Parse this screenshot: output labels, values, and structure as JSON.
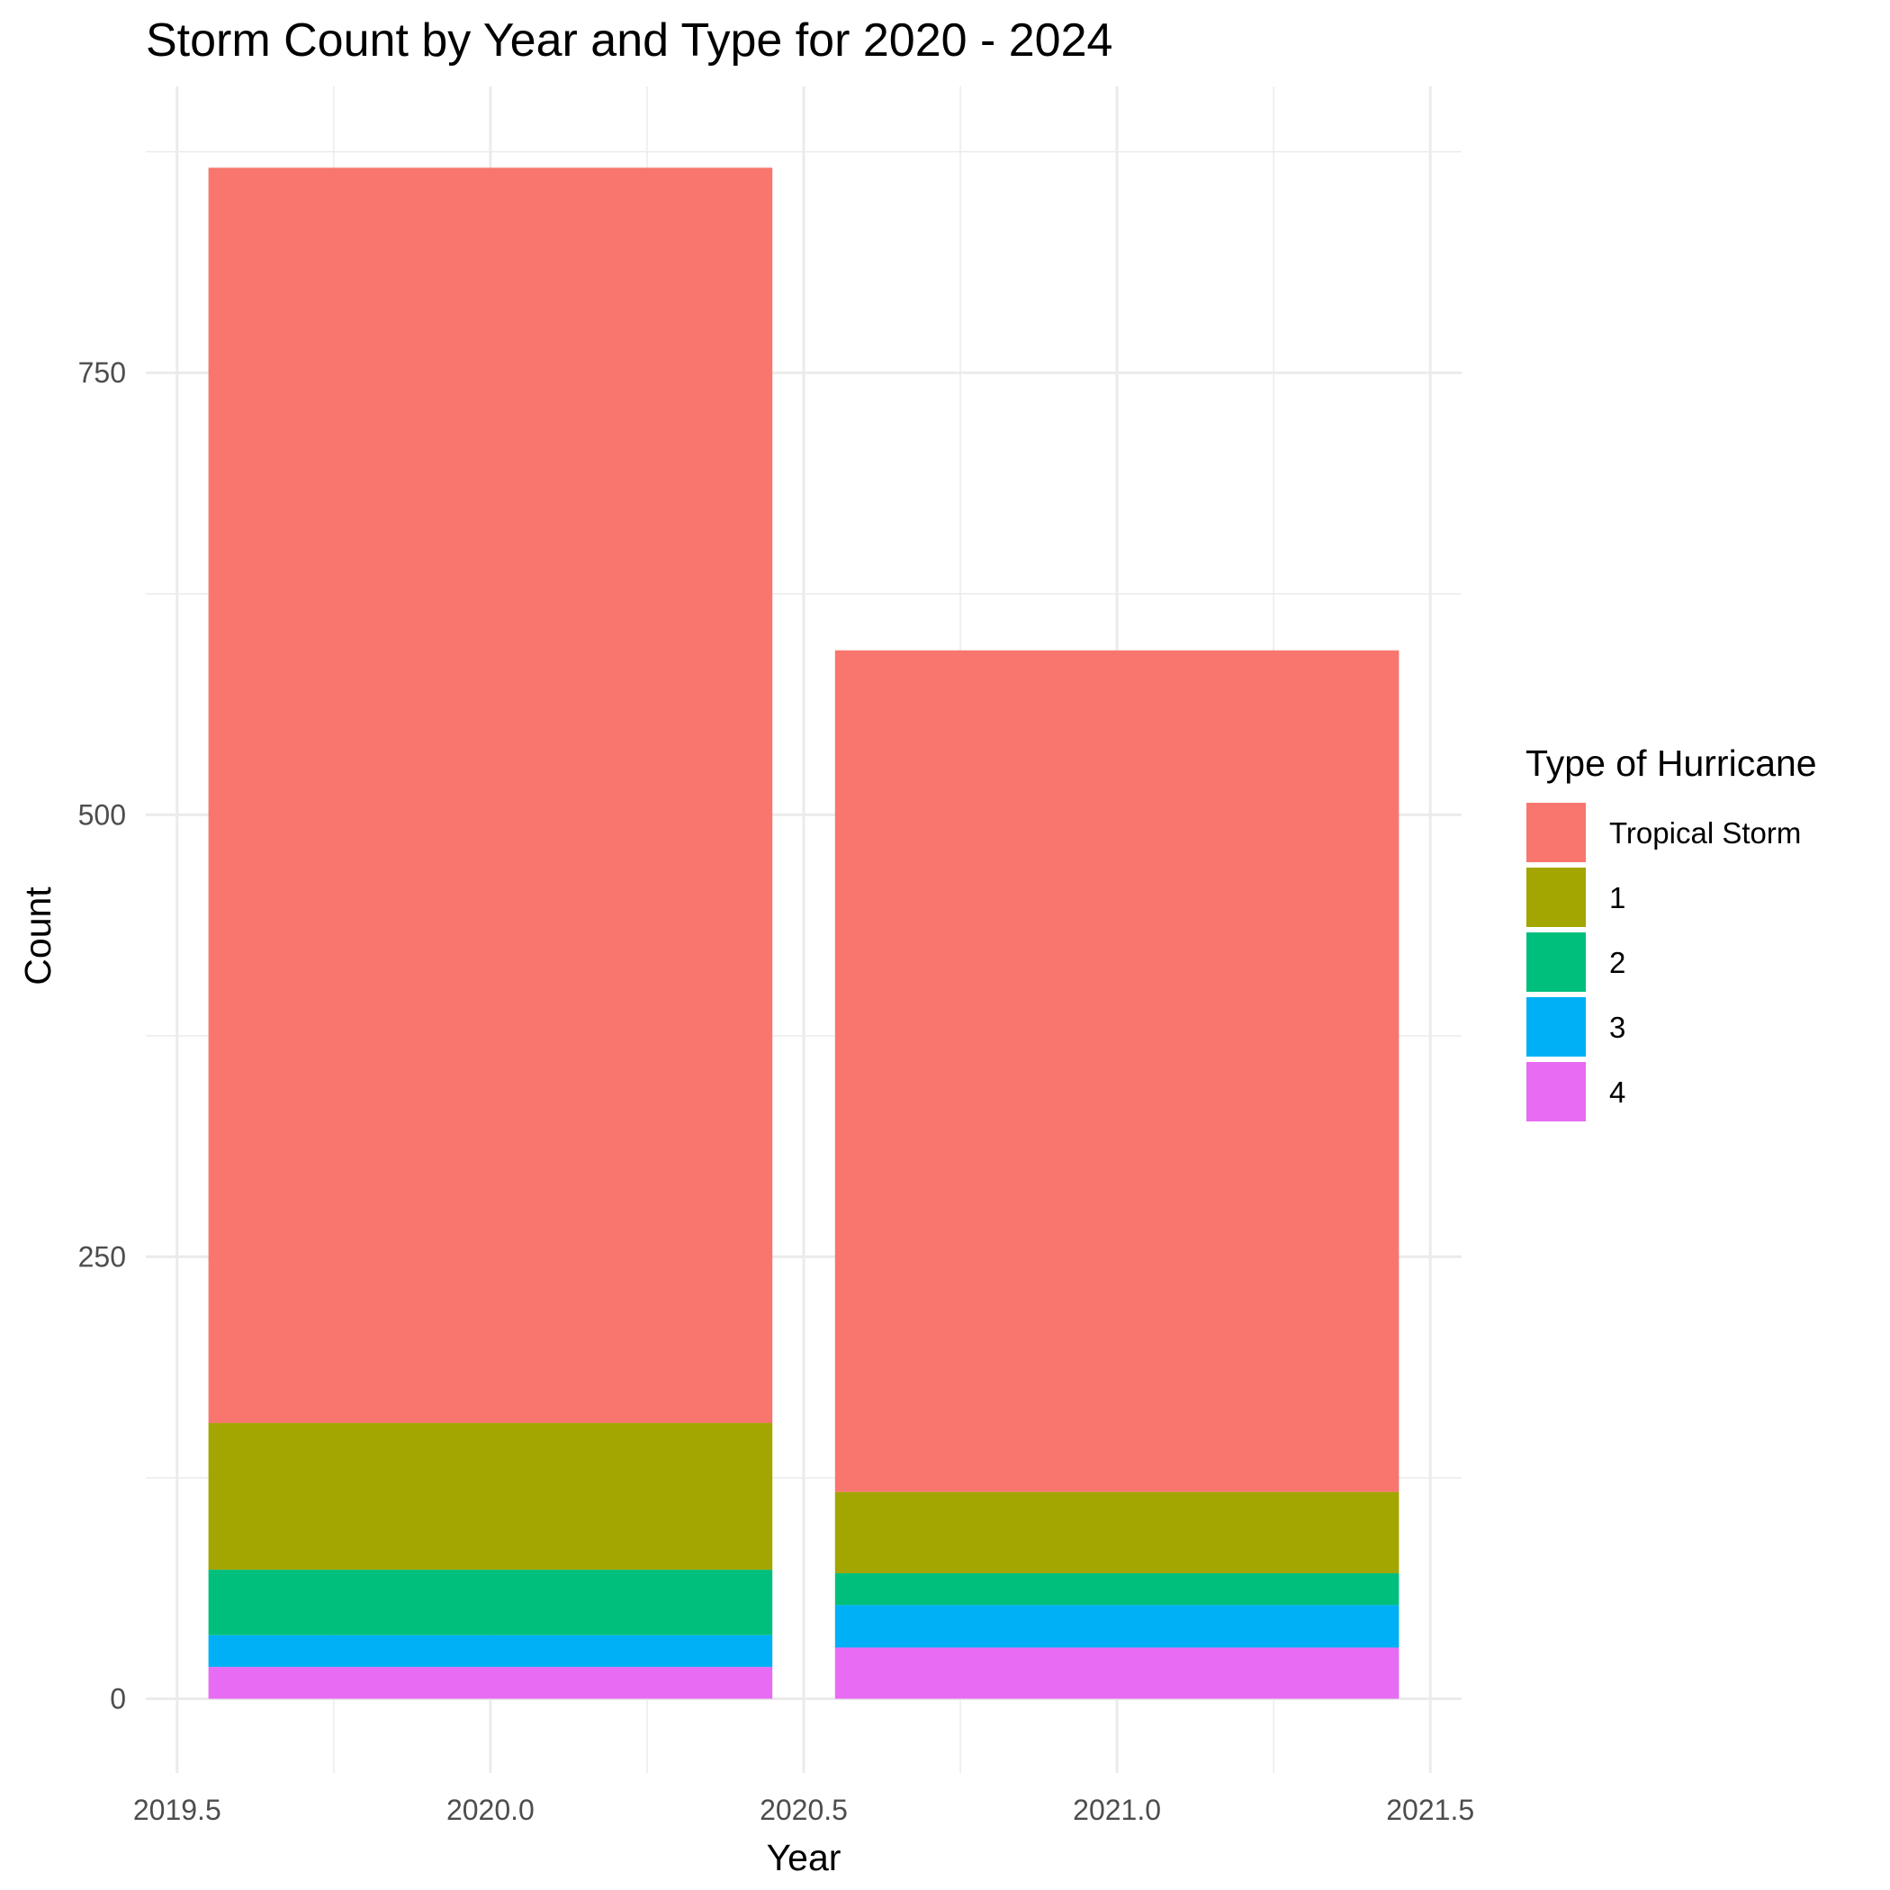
{
  "chart_data": {
    "type": "bar",
    "stacked": true,
    "title": "Storm Count by Year and Type for 2020 - 2024",
    "xlabel": "Year",
    "ylabel": "Count",
    "x": [
      2020,
      2021
    ],
    "xlim": [
      2019.45,
      2021.55
    ],
    "ylim": [
      -42,
      912
    ],
    "x_ticks": [
      {
        "value": 2019.5,
        "label": "2019.5"
      },
      {
        "value": 2020.0,
        "label": "2020.0"
      },
      {
        "value": 2020.5,
        "label": "2020.5"
      },
      {
        "value": 2021.0,
        "label": "2021.0"
      },
      {
        "value": 2021.5,
        "label": "2021.5"
      }
    ],
    "y_ticks": [
      {
        "value": 0,
        "label": "0"
      },
      {
        "value": 250,
        "label": "250"
      },
      {
        "value": 500,
        "label": "500"
      },
      {
        "value": 750,
        "label": "750"
      }
    ],
    "x_minor_ticks": [
      2019.75,
      2020.25,
      2020.75,
      2021.25
    ],
    "y_minor_ticks": [
      125,
      375,
      625,
      875
    ],
    "grid": true,
    "legend": {
      "title": "Type of Hurricane",
      "position": "right"
    },
    "series": [
      {
        "name": "Tropical Storm",
        "color": "#F8766D",
        "values": [
          710,
          476
        ]
      },
      {
        "name": "1",
        "color": "#A3A500",
        "values": [
          83,
          46
        ]
      },
      {
        "name": "2",
        "color": "#00BF7D",
        "values": [
          37,
          18
        ]
      },
      {
        "name": "3",
        "color": "#00B0F6",
        "values": [
          18,
          24
        ]
      },
      {
        "name": "4",
        "color": "#E76BF3",
        "values": [
          18,
          29
        ]
      }
    ]
  }
}
